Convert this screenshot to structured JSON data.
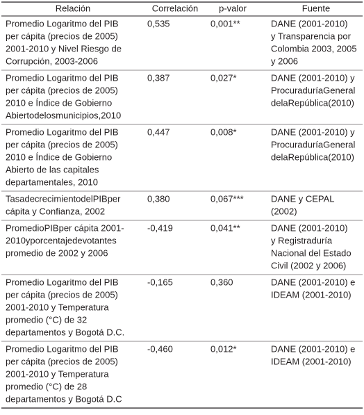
{
  "table": {
    "header": [
      "Relación",
      "Correlación",
      "p-valor",
      "Fuente"
    ],
    "rows": [
      [
        [
          "Promedio Logaritmo del PIB",
          "per cápita (precios de 2005)",
          "2001-2010 y Nivel Riesgo de",
          "Corrupción, 2003-2006"
        ],
        [
          "0,535"
        ],
        [
          "0,001**"
        ],
        [
          "DANE (2001-2010)",
          "y Transparencia por",
          "Colombia 2003, 2005",
          "y 2006"
        ]
      ],
      [
        [
          "Promedio Logaritmo del PIB",
          "per cápita (precios de 2005)",
          "2010 e Índice de Gobierno",
          "Abiertodelosmunicipios,2010"
        ],
        [
          "0,387"
        ],
        [
          "0,027*"
        ],
        [
          "DANE (2001-2010) y",
          "ProcuraduríaGeneral",
          "delaRepública(2010)"
        ]
      ],
      [
        [
          "Promedio Logaritmo del PIB",
          "per cápita (precios de 2005)",
          "2010 e Índice de Gobierno",
          "Abierto de las capitales",
          "departamentales, 2010"
        ],
        [
          "0,447"
        ],
        [
          "0,008*"
        ],
        [
          "DANE (2001-2010) y",
          "ProcuraduríaGeneral",
          "delaRepública(2010)"
        ]
      ],
      [
        [
          "TasadecrecimientodelPIBper",
          "cápita y Confianza, 2002"
        ],
        [
          "0,380"
        ],
        [
          "0,067***"
        ],
        [
          "DANE  y CEPAL",
          "(2002)"
        ]
      ],
      [
        [
          "PromedioPIBper cápita 2001-",
          "2010yporcentajedevotantes",
          "promedio de 2002 y 2006"
        ],
        [
          "-0,419"
        ],
        [
          "0,041**"
        ],
        [
          "DANE (2001-2010)",
          "y Registraduría",
          "Nacional del Estado",
          "Civil (2002 y 2006)"
        ]
      ],
      [
        [
          "Promedio Logaritmo del PIB",
          "per cápita (precios de 2005)",
          "2001-2010 y Temperatura",
          "promedio (°C) de 32",
          "departamentos y Bogotá D.C."
        ],
        [
          "-0,165"
        ],
        [
          "0,360"
        ],
        [
          "DANE (2001-2010) e",
          "IDEAM (2001-2010)"
        ]
      ],
      [
        [
          "Promedio Logaritmo del PIB",
          "per cápita (precios de 2005)",
          "2001-2010 y Temperatura",
          "promedio (°C) de 28",
          "departamentos y Bogotá D.C"
        ],
        [
          "-0,460"
        ],
        [
          "0,012*"
        ],
        [
          "DANE (2001-2010) e",
          "IDEAM (2001-2010)"
        ]
      ]
    ]
  }
}
